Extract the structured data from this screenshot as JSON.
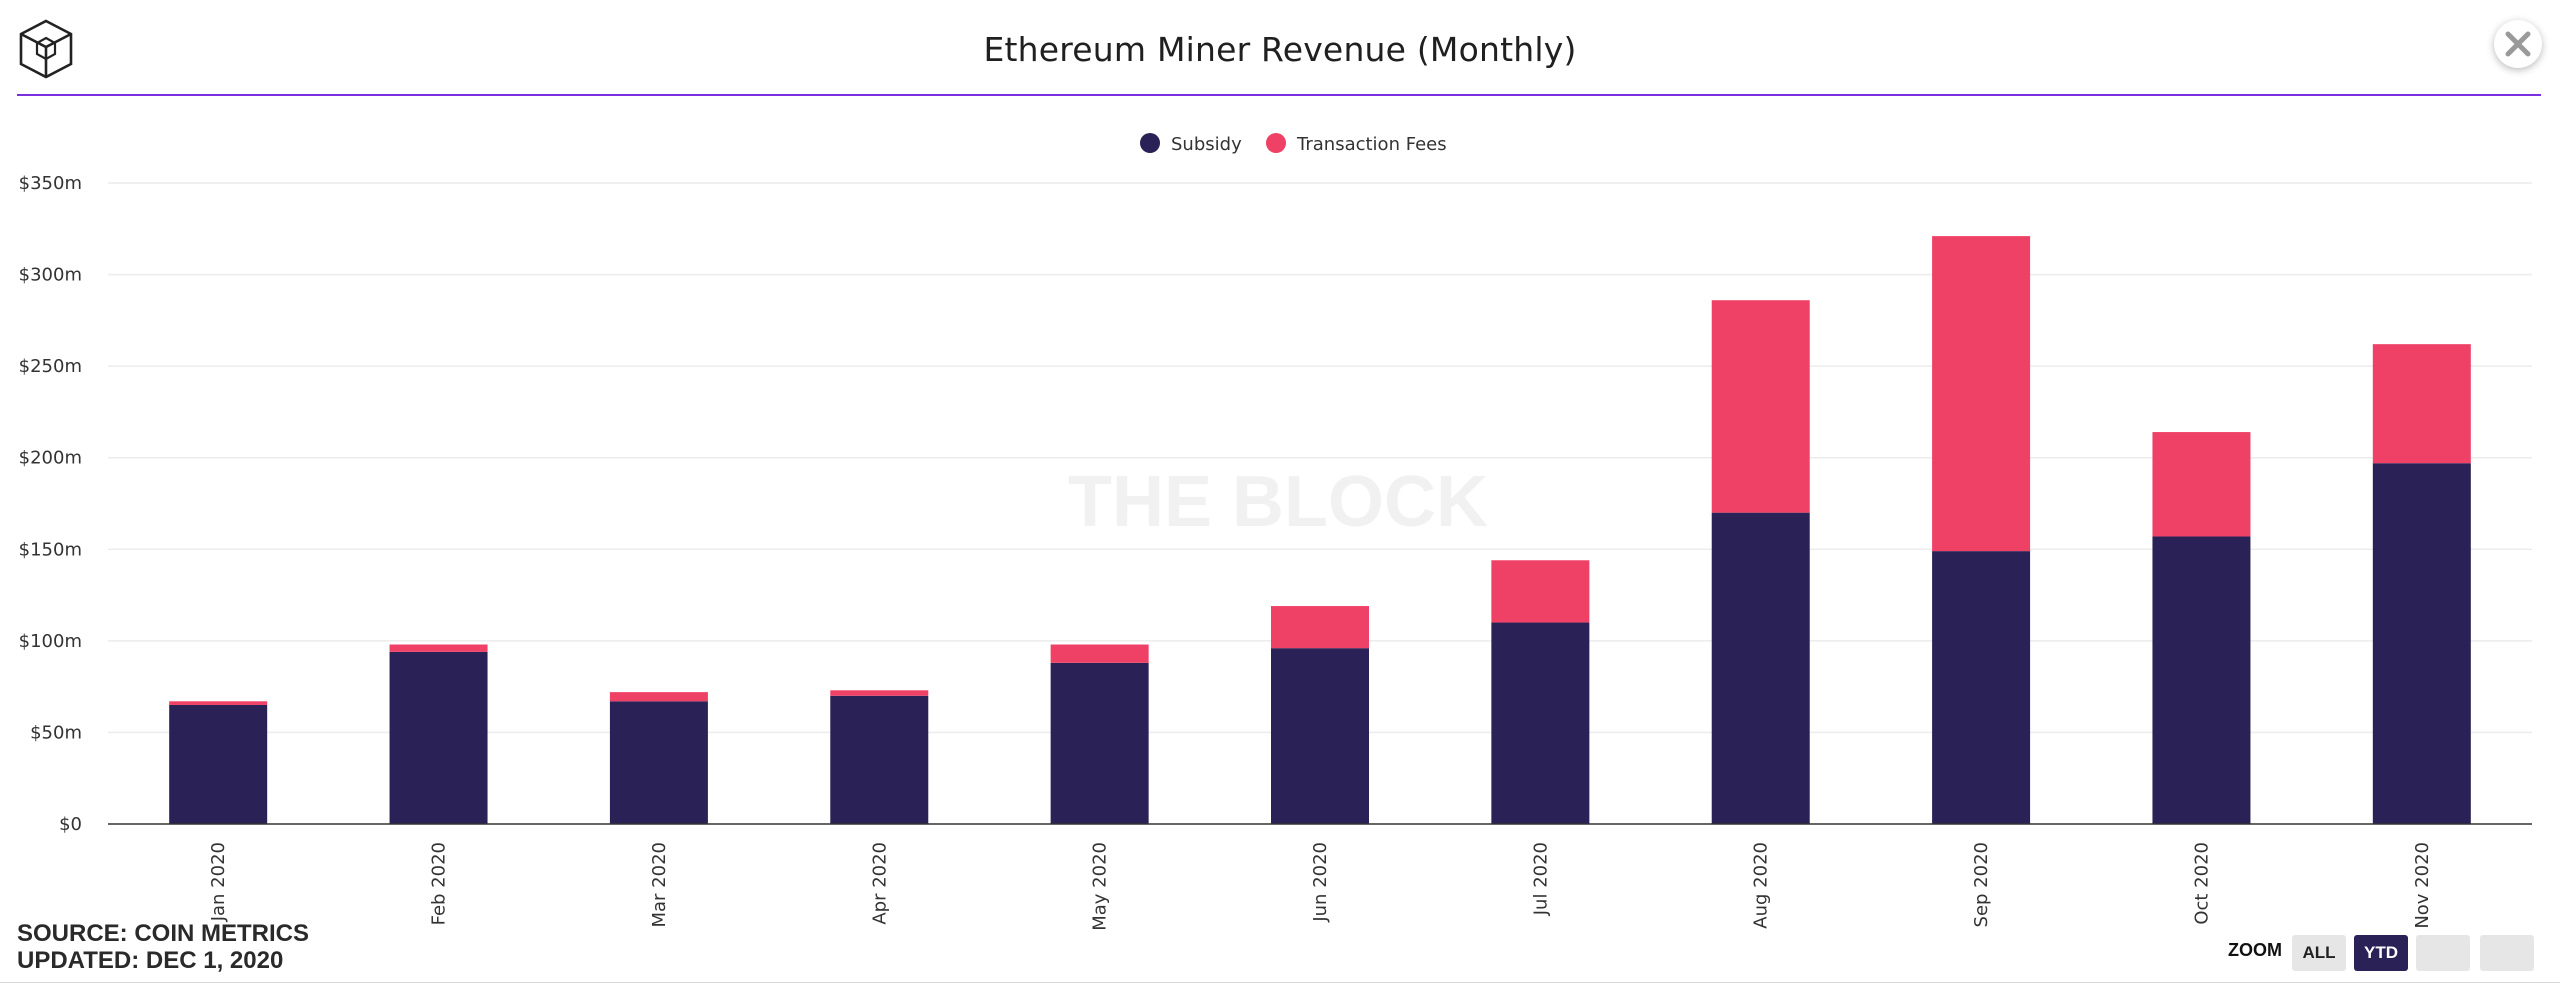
{
  "header": {
    "title": "Ethereum Miner Revenue (Monthly)",
    "close_icon": "close-icon",
    "logo_icon": "the-block-cube-logo-icon"
  },
  "watermark": "THE BLOCK",
  "footer": {
    "source": "SOURCE: COIN METRICS",
    "updated": "UPDATED: DEC 1, 2020"
  },
  "zoom": {
    "label": "ZOOM",
    "buttons": [
      {
        "label": "ALL",
        "selected": false
      },
      {
        "label": "YTD",
        "selected": true
      },
      {
        "label": "",
        "selected": false
      },
      {
        "label": "",
        "selected": false
      }
    ]
  },
  "colors": {
    "accent_line": "#7b2ee0",
    "subsidy": "#2a2157",
    "fees": "#ef4066"
  },
  "chart_data": {
    "type": "bar",
    "stacked": true,
    "title": "Ethereum Miner Revenue (Monthly)",
    "categories": [
      "Jan 2020",
      "Feb 2020",
      "Mar 2020",
      "Apr 2020",
      "May 2020",
      "Jun 2020",
      "Jul 2020",
      "Aug 2020",
      "Sep 2020",
      "Oct 2020",
      "Nov 2020"
    ],
    "series": [
      {
        "name": "Subsidy",
        "color": "#2a2157",
        "values": [
          65,
          94,
          67,
          70,
          88,
          96,
          110,
          170,
          149,
          157,
          197
        ]
      },
      {
        "name": "Transaction Fees",
        "color": "#ef4066",
        "values": [
          2,
          4,
          5,
          3,
          10,
          23,
          34,
          116,
          172,
          57,
          65
        ]
      }
    ],
    "ylim": [
      0,
      350
    ],
    "yticks": [
      0,
      50,
      100,
      150,
      200,
      250,
      300,
      350
    ],
    "ytick_labels": [
      "$0",
      "$50m",
      "$100m",
      "$150m",
      "$200m",
      "$250m",
      "$300m",
      "$350m"
    ],
    "grid": true,
    "legend": "top-center"
  }
}
